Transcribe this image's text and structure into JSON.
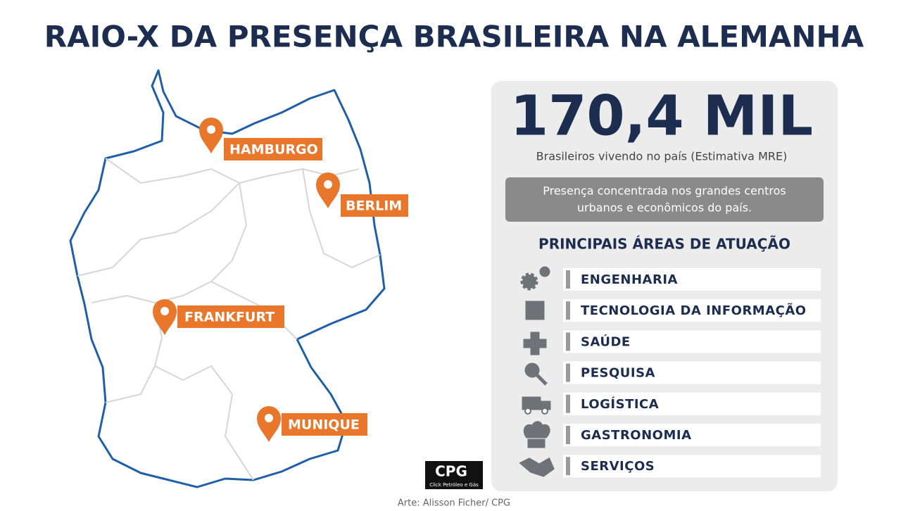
{
  "title": "RAIO-X DA PRESENÇA BRASILEIRA NA ALEMANHA",
  "map": {
    "cities": [
      "HAMBURGO",
      "BERLIM",
      "FRANKFURT",
      "MUNIQUE"
    ]
  },
  "panel": {
    "stat": "170,4 MIL",
    "stat_caption": "Brasileiros vivendo no país (Estimativa MRE)",
    "note": [
      "Presença concentrada nos grandes centros",
      "urbanos e econômicos do país."
    ],
    "areas_title": "PRINCIPAIS ÁREAS DE ATUAÇÃO",
    "areas": [
      "ENGENHARIA",
      "TECNOLOGIA DA INFORMAÇÃO",
      "SAÚDE",
      "PESQUISA",
      "LOGÍSTICA",
      "GASTRONOMIA",
      "SERVIÇOS"
    ]
  },
  "logo": {
    "name": "CPG",
    "tagline": "Click Petróleo e Gás"
  },
  "credit": "Arte: Alisson Ficher/ CPG"
}
